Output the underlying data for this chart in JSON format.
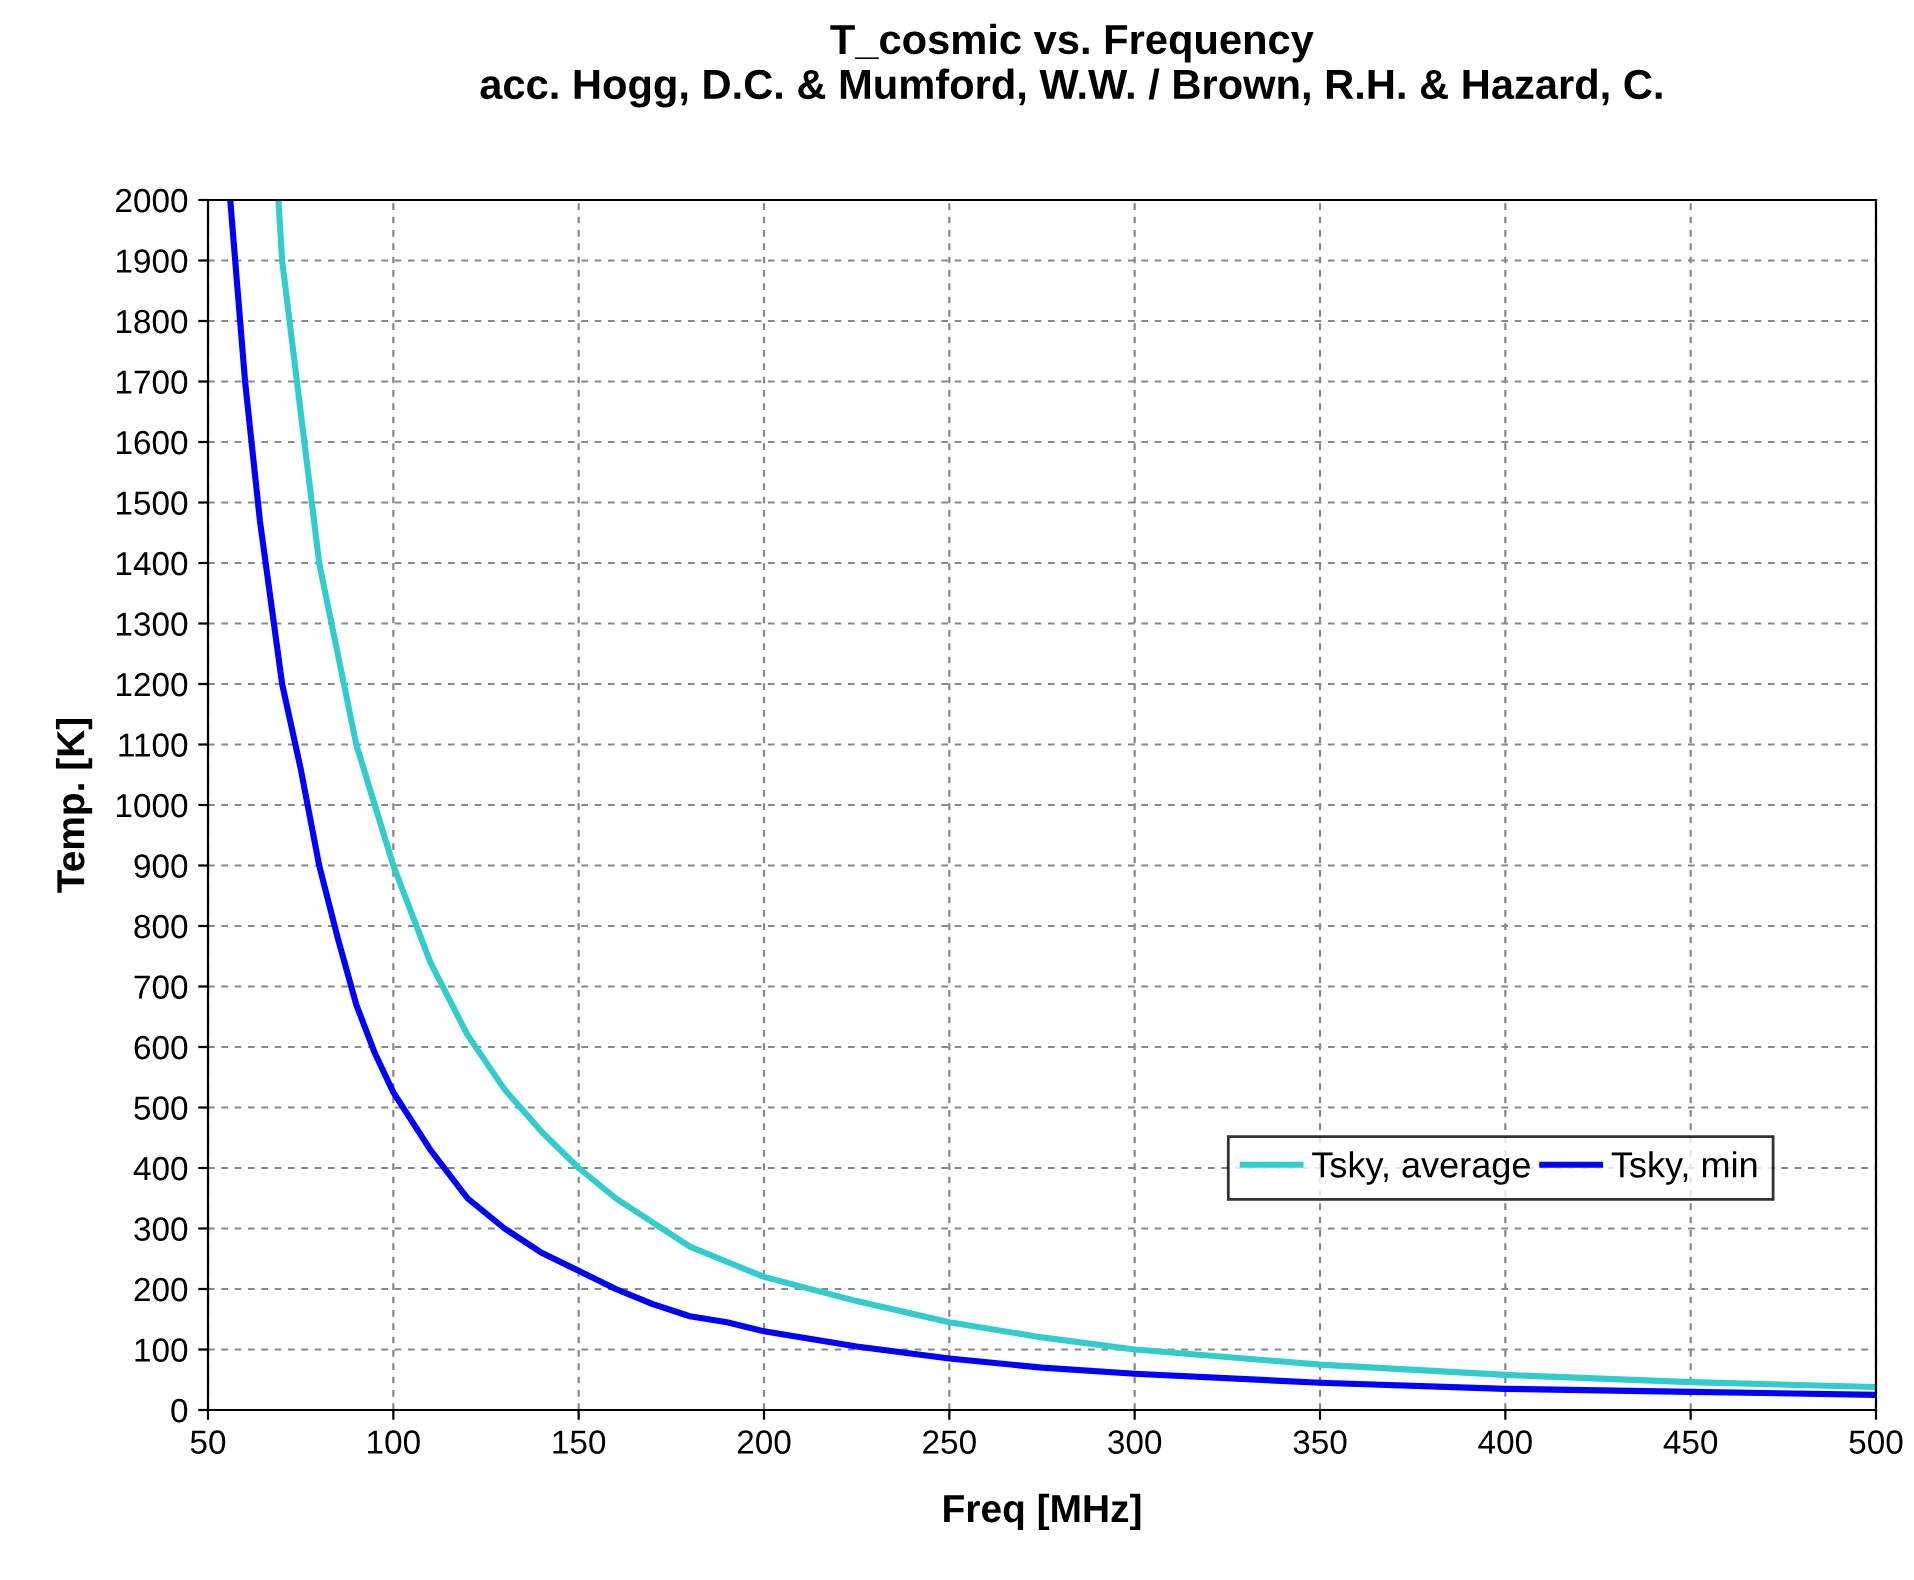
{
  "chart_data": {
    "type": "line",
    "title": "T_cosmic vs. Frequency\nacc. Hogg, D.C. & Mumford, W.W. / Brown, R.H. & Hazard, C.",
    "xlabel": "Freq [MHz]",
    "ylabel": "Temp. [K]",
    "series": [
      {
        "name": "Tsky, average",
        "color": "#33cccc",
        "x": [
          69,
          70,
          75,
          80,
          85,
          90,
          95,
          100,
          110,
          120,
          130,
          140,
          150,
          160,
          170,
          180,
          190,
          200,
          225,
          250,
          275,
          300,
          350,
          400,
          450,
          500
        ],
        "values": [
          2000,
          1900,
          1650,
          1400,
          1250,
          1100,
          1000,
          900,
          740,
          620,
          530,
          460,
          400,
          350,
          310,
          270,
          245,
          220,
          180,
          145,
          120,
          100,
          75,
          58,
          46,
          38
        ]
      },
      {
        "name": "Tsky, min",
        "color": "#0000ff",
        "x": [
          56,
          60,
          64,
          70,
          75,
          80,
          85,
          90,
          95,
          100,
          110,
          120,
          130,
          140,
          150,
          160,
          170,
          180,
          190,
          200,
          225,
          250,
          275,
          300,
          350,
          400,
          450,
          500
        ],
        "values": [
          2000,
          1700,
          1470,
          1200,
          1060,
          900,
          780,
          670,
          590,
          525,
          430,
          350,
          300,
          260,
          230,
          200,
          175,
          155,
          145,
          130,
          105,
          85,
          70,
          60,
          45,
          35,
          30,
          25
        ]
      }
    ],
    "xlim": [
      50,
      500
    ],
    "xticks": [
      50,
      100,
      150,
      200,
      250,
      300,
      350,
      400,
      450,
      500
    ],
    "ylim": [
      0,
      2000
    ],
    "yticks": [
      0,
      100,
      200,
      300,
      400,
      500,
      600,
      700,
      800,
      900,
      1000,
      1100,
      1200,
      1300,
      1400,
      1500,
      1600,
      1700,
      1800,
      1900,
      2000
    ],
    "grid": true,
    "legend": "right",
    "marker": "none",
    "line_style": "solid"
  }
}
